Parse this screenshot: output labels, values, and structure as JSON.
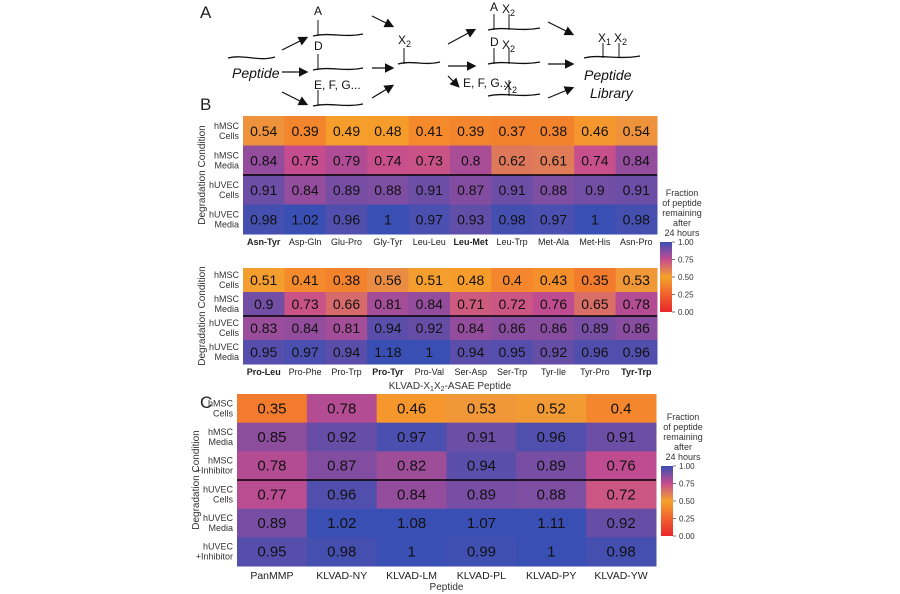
{
  "panels": {
    "a": "A",
    "b": "B",
    "c": "C"
  },
  "diagram": {
    "peptide": "Peptide",
    "library_line1": "Peptide",
    "library_line2": "Library",
    "a": "A",
    "d": "D",
    "efg": "E, F, G...",
    "x2": "X",
    "sub2": "2",
    "x1": "X",
    "sub1": "1"
  },
  "colors": {
    "low": "#e8262a",
    "mid_low": "#f47b3e",
    "mid": "#f6a12b",
    "mid_high": "#c54c8f",
    "high": "#3a4fb3",
    "divider": "#000000"
  },
  "chart_data": [
    {
      "type": "heatmap",
      "id": "b-top",
      "ylabel": "Degradation Condition",
      "rows": [
        "hMSC Cells",
        "hMSC Media",
        "hUVEC Cells",
        "hUVEC Media"
      ],
      "columns": [
        "Asn-Tyr",
        "Asp-Gln",
        "Glu-Pro",
        "Gly-Tyr",
        "Leu-Leu",
        "Leu-Met",
        "Leu-Trp",
        "Met-Ala",
        "Met-His",
        "Asn-Pro"
      ],
      "bold_columns": [
        "Asn-Tyr",
        "Leu-Met"
      ],
      "values": [
        [
          0.54,
          0.39,
          0.49,
          0.48,
          0.41,
          0.39,
          0.37,
          0.38,
          0.46,
          0.54
        ],
        [
          0.84,
          0.75,
          0.79,
          0.74,
          0.73,
          0.8,
          0.62,
          0.61,
          0.74,
          0.84
        ],
        [
          0.91,
          0.84,
          0.89,
          0.88,
          0.91,
          0.87,
          0.91,
          0.88,
          0.9,
          0.91
        ],
        [
          0.98,
          1.02,
          0.96,
          1,
          0.97,
          0.93,
          0.98,
          0.97,
          1,
          0.98
        ]
      ]
    },
    {
      "type": "heatmap",
      "id": "b-bottom",
      "ylabel": "Degradation Condition",
      "xlabel": "KLVAD-X1X2-ASAE Peptide",
      "rows": [
        "hMSC Cells",
        "hMSC Media",
        "hUVEC Cells",
        "hUVEC Media"
      ],
      "columns": [
        "Pro-Leu",
        "Pro-Phe",
        "Pro-Trp",
        "Pro-Tyr",
        "Pro-Val",
        "Ser-Asp",
        "Ser-Trp",
        "Tyr-Ile",
        "Tyr-Pro",
        "Tyr-Trp"
      ],
      "bold_columns": [
        "Pro-Leu",
        "Pro-Tyr",
        "Tyr-Trp"
      ],
      "values": [
        [
          0.51,
          0.41,
          0.38,
          0.56,
          0.51,
          0.48,
          0.4,
          0.43,
          0.35,
          0.53
        ],
        [
          0.9,
          0.73,
          0.66,
          0.81,
          0.84,
          0.71,
          0.72,
          0.76,
          0.65,
          0.78
        ],
        [
          0.83,
          0.84,
          0.81,
          0.94,
          0.92,
          0.84,
          0.86,
          0.86,
          0.89,
          0.86
        ],
        [
          0.95,
          0.97,
          0.94,
          1.18,
          1,
          0.94,
          0.95,
          0.92,
          0.96,
          0.96
        ]
      ],
      "legend": {
        "title": [
          "Fraction",
          "of peptide",
          "remaining",
          "after",
          "24 hours"
        ],
        "ticks": [
          "1.00",
          "0.75",
          "0.50",
          "0.25",
          "0.00"
        ],
        "range": [
          0,
          1
        ]
      }
    },
    {
      "type": "heatmap",
      "id": "c",
      "ylabel": "Degradation Condition",
      "xlabel": "Peptide",
      "rows": [
        "hMSC Cells",
        "hMSC Media",
        "hMSC +Inhibitor",
        "hUVEC Cells",
        "hUVEC Media",
        "hUVEC +Inhibitor"
      ],
      "columns": [
        "PanMMP",
        "KLVAD-NY",
        "KLVAD-LM",
        "KLVAD-PL",
        "KLVAD-PY",
        "KLVAD-YW"
      ],
      "values": [
        [
          0.35,
          0.78,
          0.46,
          0.53,
          0.52,
          0.4
        ],
        [
          0.85,
          0.92,
          0.97,
          0.91,
          0.96,
          0.91
        ],
        [
          0.78,
          0.87,
          0.82,
          0.94,
          0.89,
          0.76
        ],
        [
          0.77,
          0.96,
          0.84,
          0.89,
          0.88,
          0.72
        ],
        [
          0.89,
          1.02,
          1.08,
          1.07,
          1.11,
          0.92
        ],
        [
          0.95,
          0.98,
          1,
          0.99,
          1,
          0.98
        ]
      ],
      "legend": {
        "title": [
          "Fraction",
          "of peptide",
          "remaining",
          "after",
          "24 hours"
        ],
        "ticks": [
          "1.00",
          "0.75",
          "0.50",
          "0.25",
          "0.00"
        ],
        "range": [
          0,
          1
        ]
      }
    }
  ]
}
